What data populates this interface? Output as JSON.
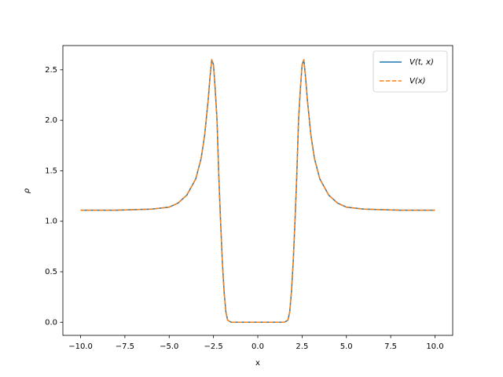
{
  "chart_data": {
    "type": "line",
    "x_label": "x",
    "y_label": "ρ",
    "x": [
      -10,
      -8,
      -6,
      -5,
      -4.5,
      -4,
      -3.5,
      -3.2,
      -3.0,
      -2.8,
      -2.7,
      -2.6,
      -2.5,
      -2.4,
      -2.3,
      -2.2,
      -2.1,
      -2.0,
      -1.9,
      -1.8,
      -1.7,
      -1.5,
      -1,
      0,
      1,
      1.5,
      1.7,
      1.8,
      1.9,
      2.0,
      2.1,
      2.2,
      2.3,
      2.4,
      2.5,
      2.6,
      2.7,
      2.8,
      3.0,
      3.2,
      3.5,
      4,
      4.5,
      5,
      6,
      8,
      10
    ],
    "series": [
      {
        "name": "V(t, x)",
        "color": "#1f77b4",
        "dash": false,
        "values": [
          1.11,
          1.11,
          1.12,
          1.14,
          1.18,
          1.26,
          1.42,
          1.62,
          1.85,
          2.2,
          2.42,
          2.6,
          2.55,
          2.3,
          2.0,
          1.45,
          1.0,
          0.6,
          0.3,
          0.1,
          0.02,
          0,
          0,
          0,
          0,
          0,
          0.02,
          0.1,
          0.3,
          0.6,
          1.0,
          1.45,
          2.0,
          2.3,
          2.55,
          2.6,
          2.42,
          2.2,
          1.85,
          1.62,
          1.42,
          1.26,
          1.18,
          1.14,
          1.12,
          1.11,
          1.11
        ]
      },
      {
        "name": "V(x)",
        "color": "#ff7f0e",
        "dash": true,
        "values": [
          1.11,
          1.11,
          1.12,
          1.14,
          1.18,
          1.26,
          1.42,
          1.62,
          1.85,
          2.2,
          2.42,
          2.6,
          2.55,
          2.3,
          2.0,
          1.45,
          1.0,
          0.6,
          0.3,
          0.1,
          0.02,
          0,
          0,
          0,
          0,
          0,
          0.02,
          0.1,
          0.3,
          0.6,
          1.0,
          1.45,
          2.0,
          2.3,
          2.55,
          2.6,
          2.42,
          2.2,
          1.85,
          1.62,
          1.42,
          1.26,
          1.18,
          1.14,
          1.12,
          1.11,
          1.11
        ]
      }
    ],
    "xlim": [
      -11,
      11
    ],
    "ylim": [
      -0.13,
      2.74
    ],
    "xticks": [
      {
        "value": -10,
        "label": "−10.0"
      },
      {
        "value": -7.5,
        "label": "−7.5"
      },
      {
        "value": -5,
        "label": "−5.0"
      },
      {
        "value": -2.5,
        "label": "−2.5"
      },
      {
        "value": 0,
        "label": "0.0"
      },
      {
        "value": 2.5,
        "label": "2.5"
      },
      {
        "value": 5,
        "label": "5.0"
      },
      {
        "value": 7.5,
        "label": "7.5"
      },
      {
        "value": 10,
        "label": "10.0"
      }
    ],
    "yticks": [
      {
        "value": 0,
        "label": "0.0"
      },
      {
        "value": 0.5,
        "label": "0.5"
      },
      {
        "value": 1,
        "label": "1.0"
      },
      {
        "value": 1.5,
        "label": "1.5"
      },
      {
        "value": 2,
        "label": "2.0"
      },
      {
        "value": 2.5,
        "label": "2.5"
      }
    ],
    "legend": "upper right",
    "grid": false
  }
}
